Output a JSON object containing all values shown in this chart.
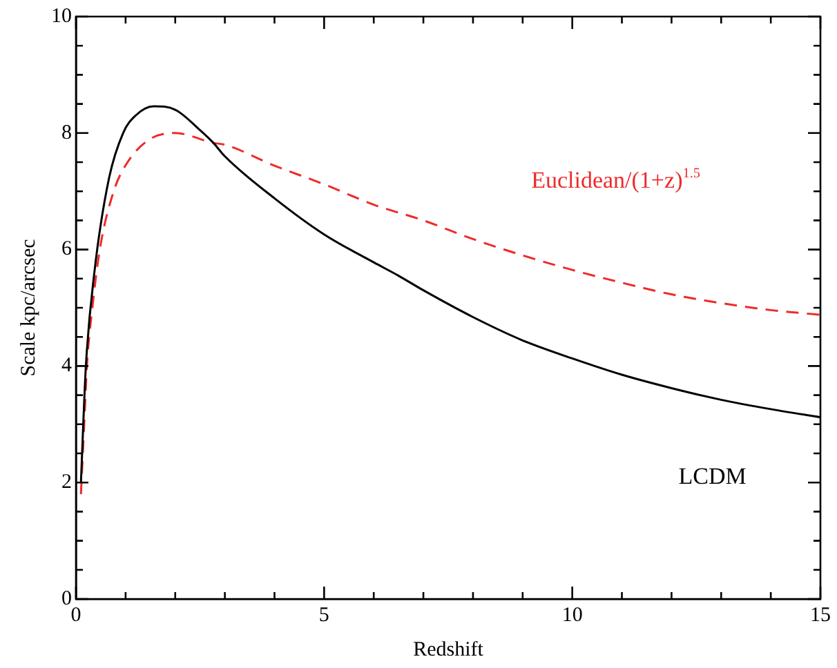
{
  "chart_data": {
    "type": "line",
    "xlabel": "Redshift",
    "ylabel": "Scale kpc/arcsec",
    "legend": false,
    "marker": "none",
    "grid": false,
    "xlim": [
      0,
      15
    ],
    "ylim": [
      0,
      10
    ],
    "xticks": [
      0,
      {
        "value": 1,
        "label": null
      },
      {
        "value": 2,
        "label": null
      },
      {
        "value": 3,
        "label": null
      },
      {
        "value": 4,
        "label": null
      },
      5,
      {
        "value": 6,
        "label": null
      },
      {
        "value": 7,
        "label": null
      },
      {
        "value": 8,
        "label": null
      },
      {
        "value": 9,
        "label": null
      },
      10,
      {
        "value": 11,
        "label": null
      },
      {
        "value": 12,
        "label": null
      },
      {
        "value": 13,
        "label": null
      },
      {
        "value": 14,
        "label": null
      },
      15
    ],
    "yticks": [
      0,
      {
        "value": 0.5,
        "label": null
      },
      {
        "value": 1,
        "label": null
      },
      {
        "value": 1.5,
        "label": null
      },
      2,
      {
        "value": 2.5,
        "label": null
      },
      {
        "value": 3,
        "label": null
      },
      {
        "value": 3.5,
        "label": null
      },
      4,
      {
        "value": 4.5,
        "label": null
      },
      {
        "value": 5,
        "label": null
      },
      {
        "value": 5.5,
        "label": null
      },
      6,
      {
        "value": 6.5,
        "label": null
      },
      {
        "value": 7,
        "label": null
      },
      {
        "value": 7.5,
        "label": null
      },
      8,
      {
        "value": 8.5,
        "label": null
      },
      {
        "value": 9,
        "label": null
      },
      {
        "value": 9.5,
        "label": null
      },
      10
    ],
    "series": [
      {
        "name": "LCDM",
        "color": "#000000",
        "line_style": "solid",
        "x": [
          0.1,
          0.2,
          0.37,
          0.66,
          0.95,
          1.2,
          1.57,
          2,
          2.5,
          2.77,
          3,
          4,
          5,
          6,
          6.5,
          7,
          8,
          9,
          10,
          11,
          12,
          13,
          14,
          15
        ],
        "values": [
          2,
          4,
          5.6,
          7.2,
          8,
          8.3,
          8.46,
          8.4,
          8.05,
          7.83,
          7.6,
          6.88,
          6.26,
          5.78,
          5.55,
          5.3,
          4.84,
          4.44,
          4.13,
          3.85,
          3.62,
          3.42,
          3.26,
          3.12
        ]
      },
      {
        "name": "Euclidean/(1+z)$^{1.5}$",
        "color": "#ee2a2a",
        "line_style": "dashed",
        "x": [
          0.1,
          0.18,
          0.22,
          0.33,
          0.48,
          0.76,
          1.04,
          1.5,
          2,
          2.77,
          3,
          4,
          5,
          6,
          7,
          8,
          9,
          10,
          11,
          12,
          13,
          14,
          15
        ],
        "values": [
          1.8,
          3.26,
          4,
          5,
          6,
          7,
          7.5,
          7.9,
          8,
          7.83,
          7.8,
          7.44,
          7.12,
          6.77,
          6.5,
          6.18,
          5.9,
          5.65,
          5.43,
          5.23,
          5.08,
          4.96,
          4.88
        ]
      }
    ]
  }
}
